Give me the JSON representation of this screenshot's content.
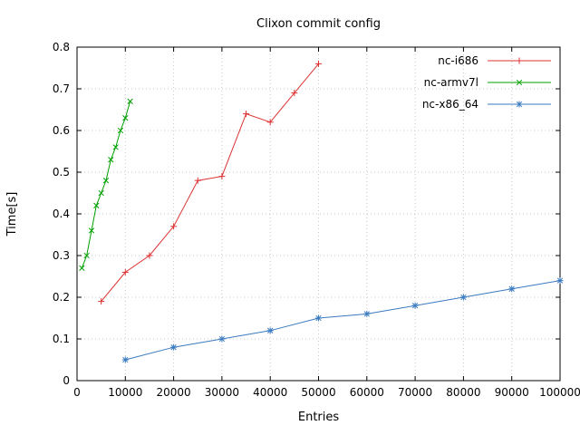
{
  "page": {
    "title": "Clixon commit config"
  },
  "chart_data": {
    "type": "line",
    "title": "Clixon commit config",
    "xlabel": "Entries",
    "ylabel": "Time[s]",
    "xlim": [
      0,
      100000
    ],
    "ylim": [
      0,
      0.8
    ],
    "grid": true,
    "legend_position": "top-right",
    "background": "#ffffff",
    "grid_color": "#c8c8c8",
    "border_color": "#000000",
    "x_ticks": [
      0,
      10000,
      20000,
      30000,
      40000,
      50000,
      60000,
      70000,
      80000,
      90000,
      100000
    ],
    "x_tick_labels": [
      "0",
      "10000",
      "20000",
      "30000",
      "40000",
      "50000",
      "60000",
      "70000",
      "80000",
      "90000",
      "100000"
    ],
    "y_ticks": [
      0,
      0.1,
      0.2,
      0.3,
      0.4,
      0.5,
      0.6,
      0.7,
      0.8
    ],
    "y_tick_labels": [
      "0",
      "0.1",
      "0.2",
      "0.3",
      "0.4",
      "0.5",
      "0.6",
      "0.7",
      "0.8"
    ],
    "series": [
      {
        "name": "nc-i686",
        "color": "#dc3232",
        "marker": "plus",
        "x": [
          5000,
          10000,
          15000,
          20000,
          25000,
          30000,
          35000,
          40000,
          45000,
          50000
        ],
        "y": [
          0.19,
          0.26,
          0.3,
          0.37,
          0.48,
          0.49,
          0.64,
          0.62,
          0.69,
          0.76
        ]
      },
      {
        "name": "nc-armv7l",
        "color": "#00a000",
        "marker": "cross",
        "x": [
          1000,
          2000,
          3000,
          4000,
          5000,
          6000,
          7000,
          8000,
          9000,
          10000,
          11000
        ],
        "y": [
          0.27,
          0.3,
          0.36,
          0.42,
          0.45,
          0.48,
          0.53,
          0.56,
          0.6,
          0.63,
          0.67
        ]
      },
      {
        "name": "nc-x86_64",
        "color": "#3a7abf",
        "marker": "star",
        "x": [
          10000,
          20000,
          30000,
          40000,
          50000,
          60000,
          70000,
          80000,
          90000,
          100000
        ],
        "y": [
          0.05,
          0.08,
          0.1,
          0.12,
          0.15,
          0.16,
          0.18,
          0.2,
          0.22,
          0.24
        ]
      }
    ]
  }
}
